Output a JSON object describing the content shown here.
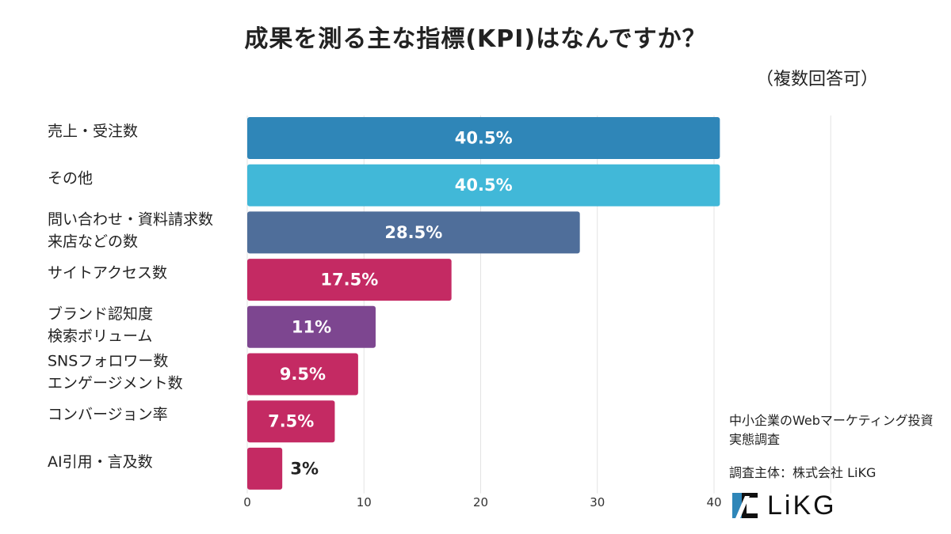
{
  "title": "成果を測る主な指標(KPI)はなんですか？",
  "subtitle": "（複数回答可）",
  "chart_data": {
    "type": "bar",
    "orientation": "horizontal",
    "categories": [
      [
        "売上・受注数"
      ],
      [
        "その他"
      ],
      [
        "問い合わせ・資料請求数",
        "来店などの数"
      ],
      [
        "サイトアクセス数"
      ],
      [
        "ブランド認知度",
        "検索ボリューム"
      ],
      [
        "SNSフォロワー数",
        "エンゲージメント数"
      ],
      [
        "コンバージョン率"
      ],
      [
        "AI引用・言及数"
      ]
    ],
    "values": [
      40.5,
      40.5,
      28.5,
      17.5,
      11,
      9.5,
      7.5,
      3
    ],
    "value_labels": [
      "40.5%",
      "40.5%",
      "28.5%",
      "17.5%",
      "11%",
      "9.5%",
      "7.5%",
      "3%"
    ],
    "colors": [
      "#2f86b8",
      "#41b8d8",
      "#4f6e9a",
      "#c42a63",
      "#7d4690",
      "#c42a63",
      "#c42a63",
      "#c42a63"
    ],
    "xlim": [
      0,
      40
    ],
    "xticks": [
      0,
      10,
      20,
      30,
      40
    ],
    "grid": true
  },
  "notes": {
    "survey_name": "中小企業のWebマーケティング投資実態調査",
    "organizer": "調査主体：株式会社 LiKG"
  },
  "logo": {
    "text": "LiKG",
    "icon": "likg-logo-icon"
  }
}
